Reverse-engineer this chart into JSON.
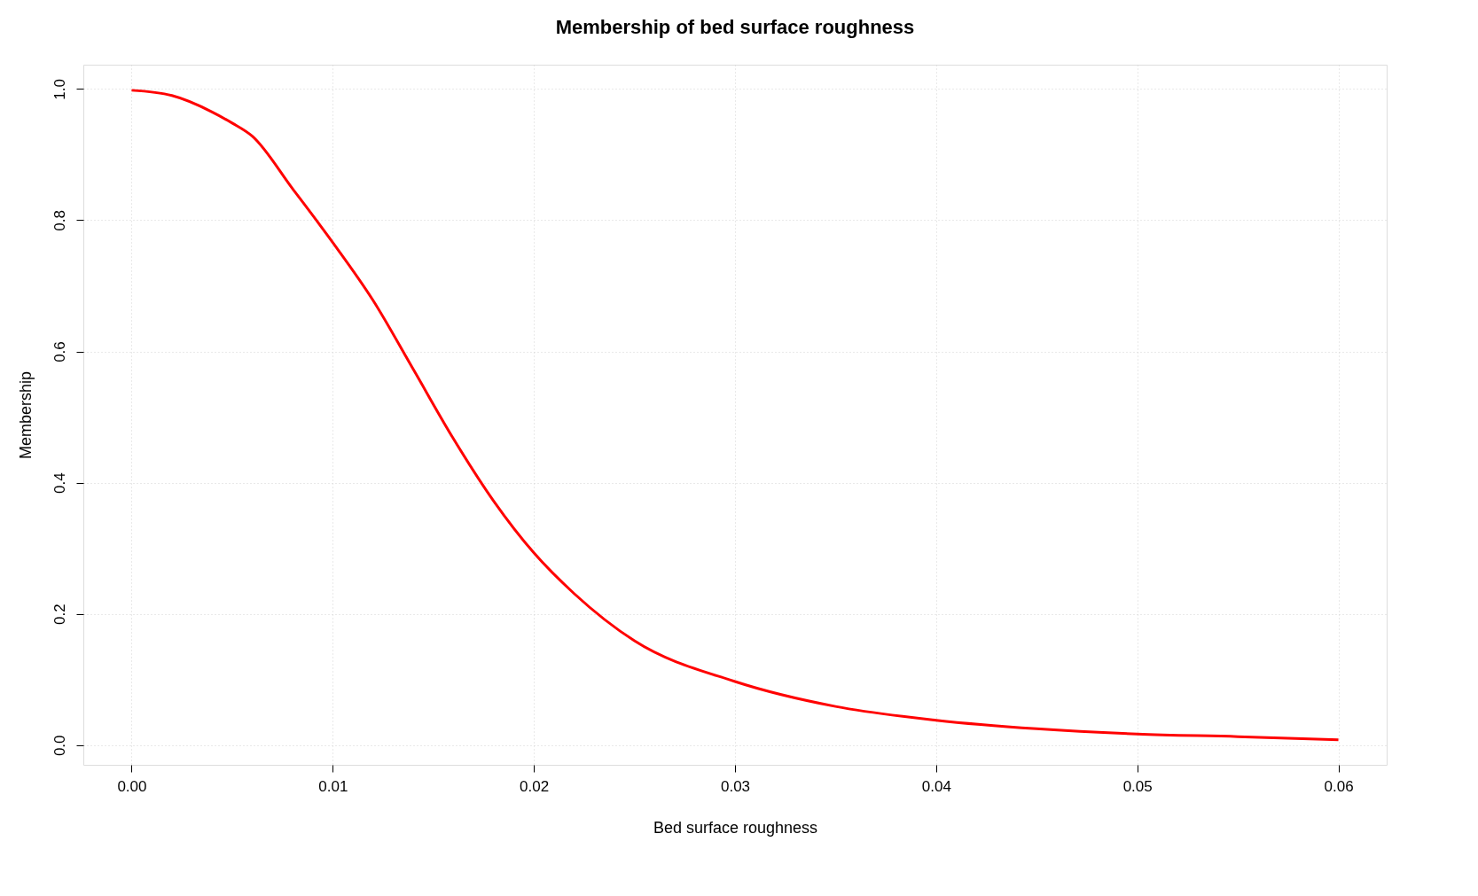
{
  "chart_data": {
    "type": "line",
    "title": "Membership of bed surface roughness",
    "xlabel": "Bed surface roughness",
    "ylabel": "Membership",
    "x": [
      0,
      0.002,
      0.004,
      0.005,
      0.006,
      0.008,
      0.01,
      0.012,
      0.014,
      0.016,
      0.018,
      0.02,
      0.022,
      0.025,
      0.03,
      0.035,
      0.04,
      0.045,
      0.05,
      0.055,
      0.06
    ],
    "series": [
      {
        "color": "#ff0000",
        "values": [
          0.998,
          0.99,
          0.965,
          0.948,
          0.928,
          0.848,
          0.766,
          0.678,
          0.573,
          0.467,
          0.372,
          0.293,
          0.231,
          0.159,
          0.097,
          0.059,
          0.038,
          0.025,
          0.017,
          0.013,
          0.008
        ]
      }
    ],
    "xlim": [
      -0.0024,
      0.0624
    ],
    "ylim": [
      -0.03,
      1.037
    ],
    "xticks": [
      {
        "value": 0,
        "label": "0.00"
      },
      0.01,
      0.02,
      0.03,
      0.04,
      0.05,
      0.06
    ],
    "yticks": [
      {
        "value": 0,
        "label": "0.0"
      },
      0.2,
      0.4,
      0.6,
      0.8,
      {
        "value": 1,
        "label": "1.0"
      }
    ],
    "grid": true,
    "line_style": "solid",
    "marker": "none"
  }
}
